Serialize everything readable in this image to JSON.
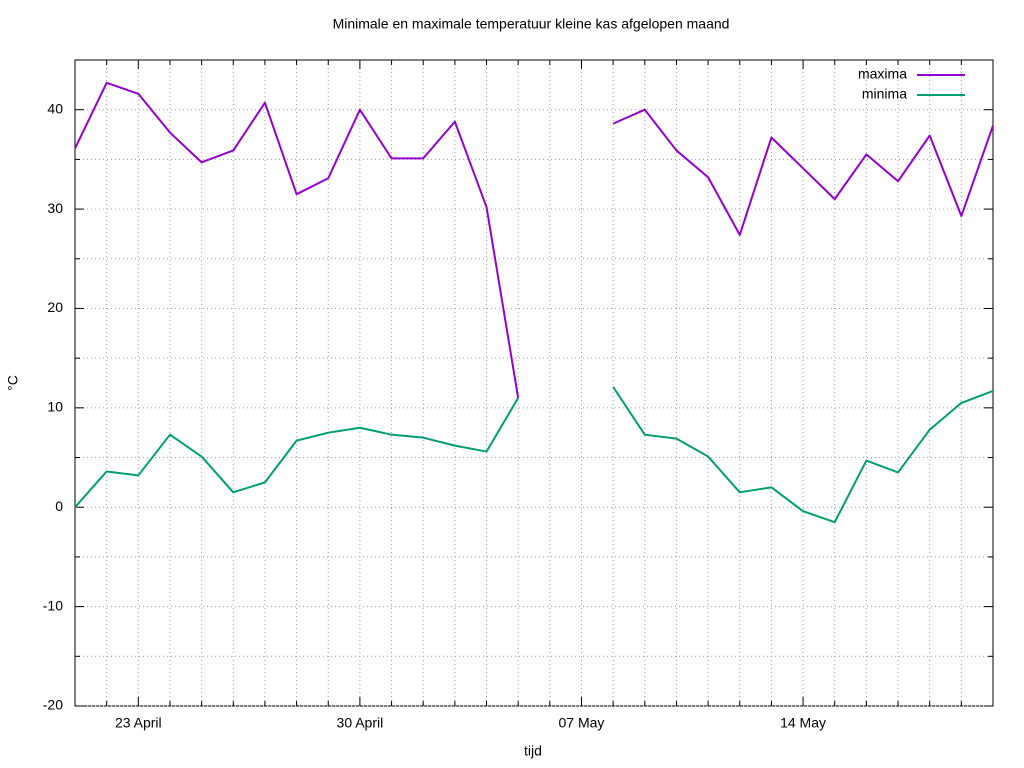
{
  "chart_data": {
    "type": "line",
    "title": "Minimale en maximale temperatuur kleine kas afgelopen maand",
    "xlabel": "tijd",
    "ylabel": "°C",
    "categories": [
      null,
      null,
      "23 April",
      null,
      null,
      null,
      null,
      null,
      null,
      "30 April",
      null,
      null,
      null,
      null,
      null,
      null,
      "07 May",
      null,
      null,
      null,
      null,
      null,
      null,
      "14 May",
      null,
      null,
      null,
      null,
      null,
      null
    ],
    "series": [
      {
        "name": "maxima",
        "color": "#9400d3",
        "values": [
          36.1,
          42.7,
          41.6,
          37.7,
          34.7,
          35.9,
          40.7,
          31.5,
          33.1,
          40.0,
          35.1,
          35.1,
          38.8,
          30.2,
          11.0,
          null,
          null,
          38.6,
          40.0,
          35.9,
          33.2,
          27.4,
          37.2,
          34.1,
          31.0,
          35.5,
          32.8,
          37.4,
          29.3,
          38.4
        ]
      },
      {
        "name": "minima",
        "color": "#009e73",
        "values": [
          0,
          3.6,
          3.2,
          7.3,
          5.1,
          1.5,
          2.5,
          6.7,
          7.5,
          8.0,
          7.3,
          7.0,
          6.2,
          5.6,
          11.0,
          null,
          null,
          12.1,
          7.3,
          6.9,
          5.1,
          1.5,
          2.0,
          -0.4,
          -1.5,
          4.7,
          3.5,
          7.8,
          10.5,
          11.7
        ]
      }
    ],
    "ylim": [
      -20,
      45
    ],
    "yticks": [
      -20,
      -10,
      0,
      10,
      20,
      30,
      40
    ],
    "yminorticks": [
      -15,
      -5,
      5,
      15,
      25,
      35
    ],
    "grid": true,
    "legend": "top right",
    "title_color": "#4169e1"
  }
}
